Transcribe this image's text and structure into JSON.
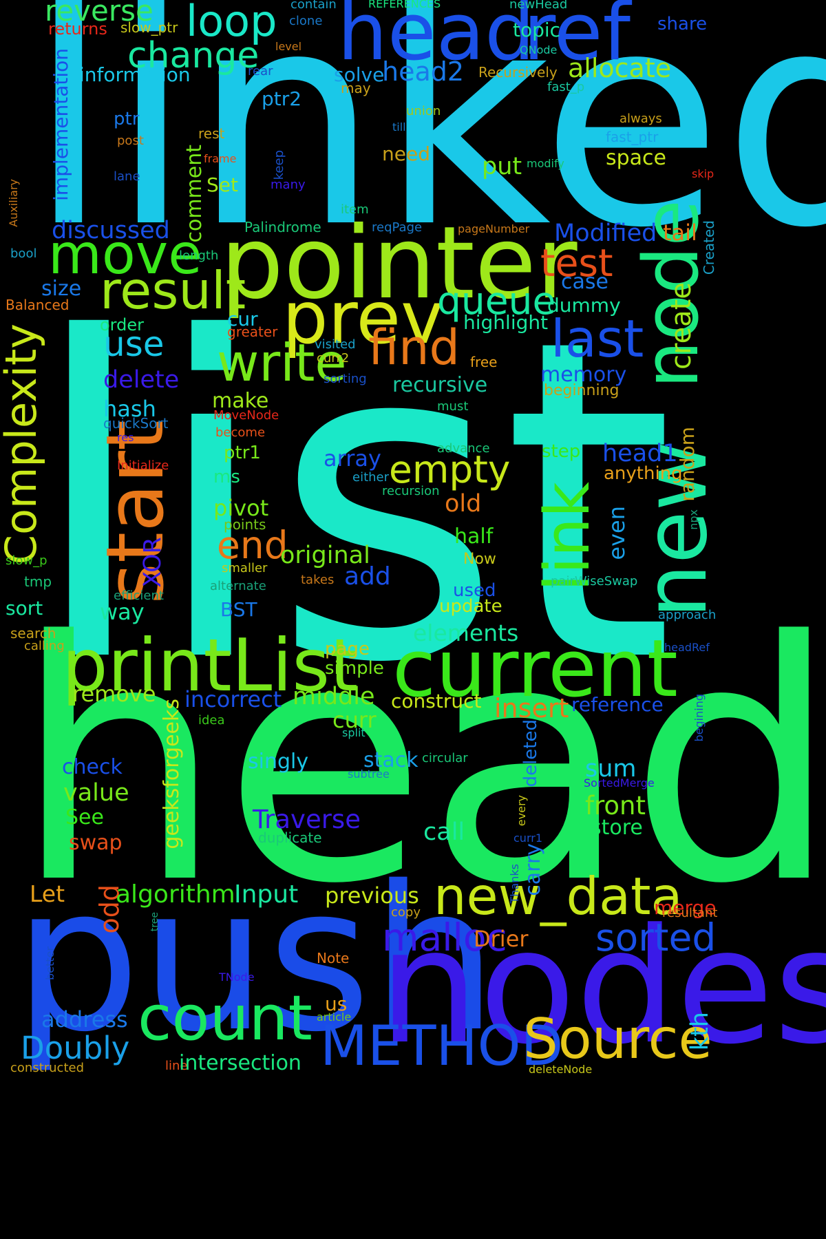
{
  "words": [
    {
      "text": "linked",
      "color": "#1AC8E8"
    },
    {
      "text": "list",
      "color": "#1AE8C8"
    },
    {
      "text": "head",
      "color": "#1AE860"
    },
    {
      "text": "push",
      "color": "#1A4CE8"
    },
    {
      "text": "nodes",
      "color": "#3A1AE8"
    },
    {
      "text": "pointer",
      "color": "#9EE81A"
    },
    {
      "text": "head",
      "color": "#1A50E8"
    },
    {
      "text": "ref",
      "color": "#1A50E8"
    },
    {
      "text": "current",
      "color": "#3AE81A"
    },
    {
      "text": "printList",
      "color": "#78E81A"
    },
    {
      "text": "prev",
      "color": "#D8E81A"
    },
    {
      "text": "node",
      "color": "#1AE880"
    },
    {
      "text": "new",
      "color": "#1AE8A0"
    },
    {
      "text": "start",
      "color": "#E8781A"
    },
    {
      "text": "count",
      "color": "#1AE860"
    },
    {
      "text": "new_data",
      "color": "#C8E81A"
    },
    {
      "text": "METHOD",
      "color": "#1A50E8"
    },
    {
      "text": "Source",
      "color": "#E8C81A"
    },
    {
      "text": "link",
      "color": "#3AE81A"
    },
    {
      "text": "move",
      "color": "#3AE81A"
    },
    {
      "text": "result",
      "color": "#9EE81A"
    },
    {
      "text": "write",
      "color": "#78E81A"
    },
    {
      "text": "last",
      "color": "#1A50E8"
    },
    {
      "text": "find",
      "color": "#E8781A"
    },
    {
      "text": "Complexity",
      "color": "#C8E81A"
    },
    {
      "text": "loop",
      "color": "#1AE8C8"
    },
    {
      "text": "change",
      "color": "#1AE8A0"
    },
    {
      "text": "reverse",
      "color": "#3AE860"
    },
    {
      "text": "queue",
      "color": "#1AE8A0"
    },
    {
      "text": "empty",
      "color": "#C8E81A"
    },
    {
      "text": "test",
      "color": "#E8501A"
    },
    {
      "text": "malloc",
      "color": "#3A1AE8"
    },
    {
      "text": "sorted",
      "color": "#1A50E8"
    },
    {
      "text": "Doubly",
      "color": "#1AA0E8"
    },
    {
      "text": "use",
      "color": "#1AC8E8"
    },
    {
      "text": "end",
      "color": "#E8781A"
    },
    {
      "text": "create",
      "color": "#9EE81A"
    },
    {
      "text": "allocate",
      "color": "#9EE81A"
    },
    {
      "text": "head2",
      "color": "#1A78E8"
    },
    {
      "text": "information",
      "color": "#1AC8E8"
    },
    {
      "text": "implementation",
      "color": "#1A50E8"
    },
    {
      "text": "topic",
      "color": "#1AE8A0"
    },
    {
      "text": "returns",
      "color": "#E8281A"
    },
    {
      "text": "slow_ptr",
      "color": "#C8C81A"
    },
    {
      "text": "contain",
      "color": "#1AA0C8"
    },
    {
      "text": "REFERENCES",
      "color": "#1AE880"
    },
    {
      "text": "newHead",
      "color": "#1AC8A0"
    },
    {
      "text": "share",
      "color": "#1A50E8"
    },
    {
      "text": "clone",
      "color": "#1A78C8"
    },
    {
      "text": "level",
      "color": "#C8781A"
    },
    {
      "text": "QNode",
      "color": "#1AC8A0"
    },
    {
      "text": "rear",
      "color": "#1A50C8"
    },
    {
      "text": "Recursively",
      "color": "#C8A01A"
    },
    {
      "text": "may",
      "color": "#C8A01A"
    },
    {
      "text": "fast_p",
      "color": "#1AC8A0"
    },
    {
      "text": "solve",
      "color": "#1AA0E8"
    },
    {
      "text": "ptr2",
      "color": "#1AA0E8"
    },
    {
      "text": "union",
      "color": "#A0C81A"
    },
    {
      "text": "till",
      "color": "#1A78C8"
    },
    {
      "text": "always",
      "color": "#C8A01A"
    },
    {
      "text": "fast_ptr",
      "color": "#1AA0E8"
    },
    {
      "text": "ptr",
      "color": "#1A78E8"
    },
    {
      "text": "post",
      "color": "#C8781A"
    },
    {
      "text": "rest",
      "color": "#C8A01A"
    },
    {
      "text": "frame",
      "color": "#E8501A"
    },
    {
      "text": "need",
      "color": "#C8A01A"
    },
    {
      "text": "put",
      "color": "#78E81A"
    },
    {
      "text": "space",
      "color": "#C8E81A"
    },
    {
      "text": "modify",
      "color": "#1AC878"
    },
    {
      "text": "skip",
      "color": "#E8281A"
    },
    {
      "text": "lane",
      "color": "#1A50C8"
    },
    {
      "text": "keep",
      "color": "#1A50C8"
    },
    {
      "text": "many",
      "color": "#3A1AE8"
    },
    {
      "text": "Set",
      "color": "#A0E81A"
    },
    {
      "text": "comment",
      "color": "#78E81A"
    },
    {
      "text": "Auxiliary",
      "color": "#C8781A"
    },
    {
      "text": "item",
      "color": "#1AC878"
    },
    {
      "text": "discussed",
      "color": "#1A50E8"
    },
    {
      "text": "Palindrome",
      "color": "#1AC878"
    },
    {
      "text": "reqPage",
      "color": "#1A78C8"
    },
    {
      "text": "pageNumber",
      "color": "#C8781A"
    },
    {
      "text": "Modified",
      "color": "#1A50E8"
    },
    {
      "text": "tail",
      "color": "#E8781A"
    },
    {
      "text": "Created",
      "color": "#1AA0C8"
    },
    {
      "text": "bool",
      "color": "#1AA0C8"
    },
    {
      "text": "length",
      "color": "#1AC878"
    },
    {
      "text": "size",
      "color": "#1A78E8"
    },
    {
      "text": "case",
      "color": "#1A78E8"
    },
    {
      "text": "Balanced",
      "color": "#E8781A"
    },
    {
      "text": "dummy",
      "color": "#1AE8A0"
    },
    {
      "text": "highlight",
      "color": "#1AE8A0"
    },
    {
      "text": "cur",
      "color": "#1AC8E8"
    },
    {
      "text": "order",
      "color": "#1AE880"
    },
    {
      "text": "greater",
      "color": "#E8501A"
    },
    {
      "text": "visited",
      "color": "#1AA0C8"
    },
    {
      "text": "curr2",
      "color": "#C8C81A"
    },
    {
      "text": "free",
      "color": "#E8A01A"
    },
    {
      "text": "delete",
      "color": "#3A1AE8"
    },
    {
      "text": "memory",
      "color": "#1A50E8"
    },
    {
      "text": "sorting",
      "color": "#1A50C8"
    },
    {
      "text": "recursive",
      "color": "#1AC8A0"
    },
    {
      "text": "hash",
      "color": "#1AC8E8"
    },
    {
      "text": "make",
      "color": "#9EE81A"
    },
    {
      "text": "beginning",
      "color": "#C8A01A"
    },
    {
      "text": "quickSort",
      "color": "#1A78C8"
    },
    {
      "text": "MoveNode",
      "color": "#E8281A"
    },
    {
      "text": "must",
      "color": "#1AC878"
    },
    {
      "text": "become",
      "color": "#E8501A"
    },
    {
      "text": "res",
      "color": "#3A1AE8"
    },
    {
      "text": "ptr1",
      "color": "#78E81A"
    },
    {
      "text": "array",
      "color": "#1A50E8"
    },
    {
      "text": "step",
      "color": "#3AE81A"
    },
    {
      "text": "head1",
      "color": "#1A50E8"
    },
    {
      "text": "advance",
      "color": "#1AC878"
    },
    {
      "text": "Initialize",
      "color": "#E8281A"
    },
    {
      "text": "ms",
      "color": "#1AE880"
    },
    {
      "text": "either",
      "color": "#1AA0C8"
    },
    {
      "text": "anything",
      "color": "#E8A01A"
    },
    {
      "text": "random",
      "color": "#C8A01A"
    },
    {
      "text": "recursion",
      "color": "#1AC878"
    },
    {
      "text": "old",
      "color": "#E8781A"
    },
    {
      "text": "pivot",
      "color": "#78E81A"
    },
    {
      "text": "points",
      "color": "#78C81A"
    },
    {
      "text": "npx",
      "color": "#1AA078"
    },
    {
      "text": "XOR",
      "color": "#3A1AE8"
    },
    {
      "text": "even",
      "color": "#1AA0E8"
    },
    {
      "text": "half",
      "color": "#3AE81A"
    },
    {
      "text": "original",
      "color": "#78E81A"
    },
    {
      "text": "slow_p",
      "color": "#3AC81A"
    },
    {
      "text": "Now",
      "color": "#C8C81A"
    },
    {
      "text": "smaller",
      "color": "#C8C81A"
    },
    {
      "text": "add",
      "color": "#1A50E8"
    },
    {
      "text": "tmp",
      "color": "#1AC878"
    },
    {
      "text": "alternate",
      "color": "#1AA078"
    },
    {
      "text": "takes",
      "color": "#C8781A"
    },
    {
      "text": "pairWiseSwap",
      "color": "#1AC8A0"
    },
    {
      "text": "used",
      "color": "#1A50E8"
    },
    {
      "text": "efficient",
      "color": "#1AA078"
    },
    {
      "text": "sort",
      "color": "#1AE8A0"
    },
    {
      "text": "update",
      "color": "#C8E81A"
    },
    {
      "text": "BST",
      "color": "#1A78E8"
    },
    {
      "text": "way",
      "color": "#1AE8A0"
    },
    {
      "text": "approach",
      "color": "#1AA0C8"
    },
    {
      "text": "search",
      "color": "#C8A01A"
    },
    {
      "text": "calling",
      "color": "#C8A01A"
    },
    {
      "text": "elements",
      "color": "#1AE8A0"
    },
    {
      "text": "page",
      "color": "#C8C81A"
    },
    {
      "text": "headRef",
      "color": "#1A50C8"
    },
    {
      "text": "simple",
      "color": "#78E81A"
    },
    {
      "text": "remove",
      "color": "#9EE81A"
    },
    {
      "text": "middle",
      "color": "#78E81A"
    },
    {
      "text": "incorrect",
      "color": "#1A50E8"
    },
    {
      "text": "construct",
      "color": "#C8E81A"
    },
    {
      "text": "insert",
      "color": "#E8781A"
    },
    {
      "text": "reference",
      "color": "#1A50E8"
    },
    {
      "text": "geeksforgeeks",
      "color": "#C8E81A"
    },
    {
      "text": "idea",
      "color": "#3AC81A"
    },
    {
      "text": "curr",
      "color": "#78E81A"
    },
    {
      "text": "split",
      "color": "#1AC8A0"
    },
    {
      "text": "begining",
      "color": "#1A50C8"
    },
    {
      "text": "check",
      "color": "#1A50E8"
    },
    {
      "text": "singly",
      "color": "#1AC8E8"
    },
    {
      "text": "stack",
      "color": "#1AA0E8"
    },
    {
      "text": "circular",
      "color": "#1AC878"
    },
    {
      "text": "deleted",
      "color": "#1A78E8"
    },
    {
      "text": "sum",
      "color": "#1AC8E8"
    },
    {
      "text": "subtree",
      "color": "#1A78C8"
    },
    {
      "text": "SortedMerge",
      "color": "#3A1AE8"
    },
    {
      "text": "value",
      "color": "#78E81A"
    },
    {
      "text": "See",
      "color": "#3AE81A"
    },
    {
      "text": "Traverse",
      "color": "#3A1AE8"
    },
    {
      "text": "front",
      "color": "#78E81A"
    },
    {
      "text": "every",
      "color": "#C8C81A"
    },
    {
      "text": "swap",
      "color": "#E8501A"
    },
    {
      "text": "duplicate",
      "color": "#1AC878"
    },
    {
      "text": "call",
      "color": "#1AE8A0"
    },
    {
      "text": "store",
      "color": "#1AE860"
    },
    {
      "text": "curr1",
      "color": "#1A50C8"
    },
    {
      "text": "carry",
      "color": "#1A78E8"
    },
    {
      "text": "Thanks",
      "color": "#1A50C8"
    },
    {
      "text": "odd",
      "color": "#E8501A"
    },
    {
      "text": "algorithm",
      "color": "#3AE81A"
    },
    {
      "text": "Input",
      "color": "#1AE8A0"
    },
    {
      "text": "Let",
      "color": "#E8A01A"
    },
    {
      "text": "previous",
      "color": "#C8E81A"
    },
    {
      "text": "merge",
      "color": "#E8281A"
    },
    {
      "text": "tree",
      "color": "#1AA078"
    },
    {
      "text": "copy",
      "color": "#C8A01A"
    },
    {
      "text": "resultant",
      "color": "#E8781A"
    },
    {
      "text": "Drier",
      "color": "#E8781A"
    },
    {
      "text": "better",
      "color": "#1A50C8"
    },
    {
      "text": "Note",
      "color": "#E8781A"
    },
    {
      "text": "TNode",
      "color": "#3A1AE8"
    },
    {
      "text": "address",
      "color": "#1A78E8"
    },
    {
      "text": "us",
      "color": "#E8A01A"
    },
    {
      "text": "article",
      "color": "#78C81A"
    },
    {
      "text": "kth",
      "color": "#1AC8E8"
    },
    {
      "text": "constructed",
      "color": "#C8A01A"
    },
    {
      "text": "line",
      "color": "#E8501A"
    },
    {
      "text": "intersection",
      "color": "#1AE880"
    },
    {
      "text": "deleteNode",
      "color": "#C8C81A"
    }
  ]
}
